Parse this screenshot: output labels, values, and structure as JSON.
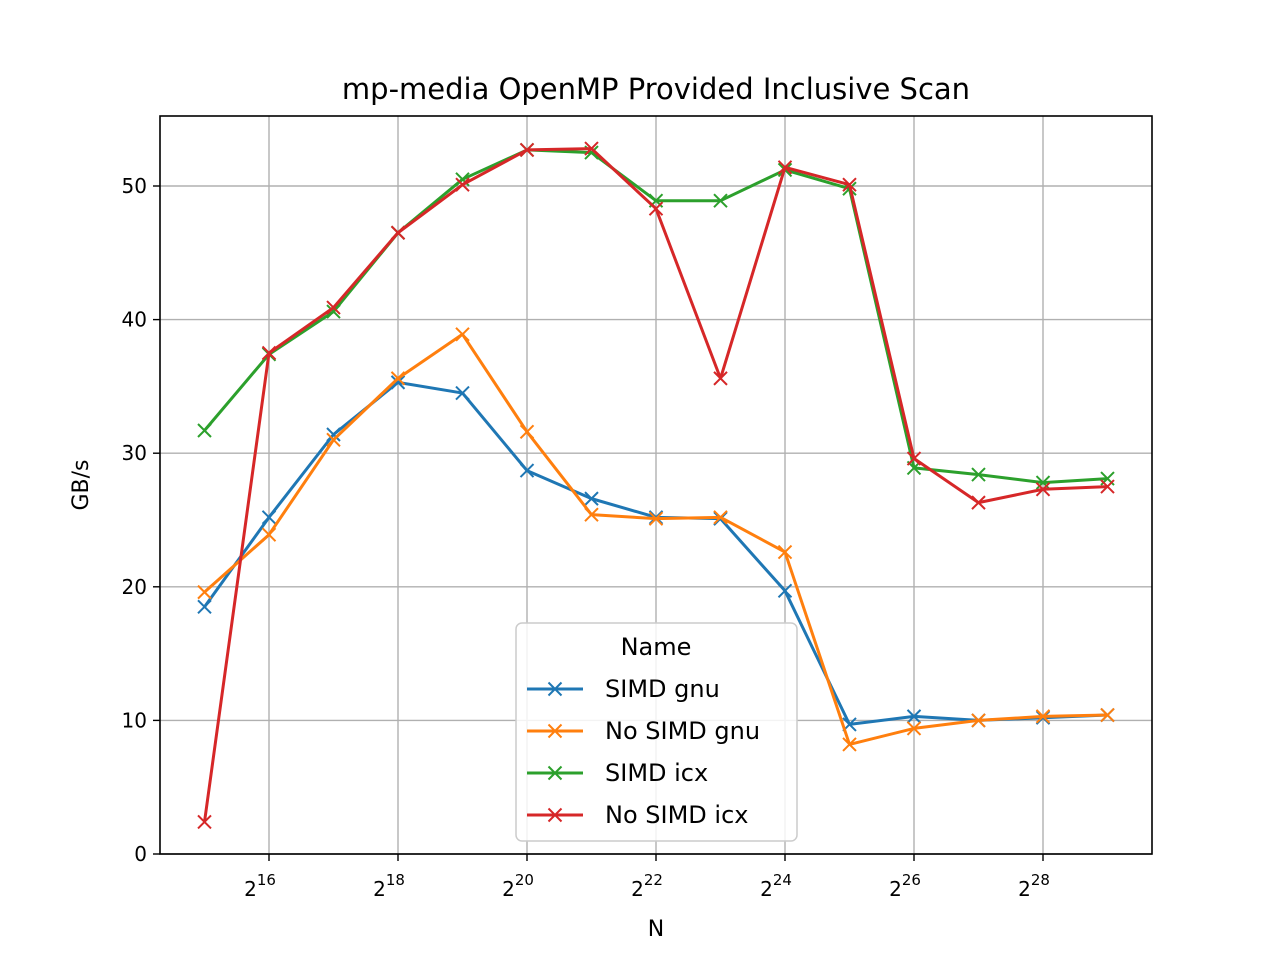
{
  "chart_data": {
    "type": "line",
    "title": "mp-media OpenMP Provided Inclusive Scan",
    "xlabel": "N",
    "ylabel": "GB/s",
    "xscale": "log2",
    "x_exponents": [
      15,
      16,
      17,
      18,
      19,
      20,
      21,
      22,
      23,
      24,
      25,
      26,
      27,
      28,
      29
    ],
    "x_tick_exponents": [
      16,
      18,
      20,
      22,
      24,
      26,
      28
    ],
    "x_tick_base": "2",
    "ylim": [
      0,
      55
    ],
    "y_ticks": [
      0,
      10,
      20,
      30,
      40,
      50
    ],
    "grid": true,
    "marker": "x",
    "legend": {
      "title": "Name",
      "placement": "lower-center"
    },
    "series": [
      {
        "name": "SIMD gnu",
        "color": "#1f77b4",
        "values": [
          18.5,
          25.2,
          31.4,
          35.3,
          34.5,
          28.7,
          26.6,
          25.2,
          25.1,
          19.7,
          9.7,
          10.3,
          10.0,
          10.2,
          10.4
        ]
      },
      {
        "name": "No SIMD gnu",
        "color": "#ff7f0e",
        "values": [
          19.6,
          23.9,
          31.0,
          35.6,
          38.9,
          31.6,
          25.4,
          25.1,
          25.2,
          22.6,
          8.2,
          9.4,
          10.0,
          10.3,
          10.4
        ]
      },
      {
        "name": "SIMD icx",
        "color": "#2ca02c",
        "values": [
          31.7,
          37.4,
          40.6,
          46.5,
          50.5,
          52.7,
          52.5,
          48.9,
          48.9,
          51.2,
          49.8,
          28.9,
          28.4,
          27.8,
          28.1
        ]
      },
      {
        "name": "No SIMD icx",
        "color": "#d62728",
        "values": [
          2.4,
          37.5,
          40.9,
          46.5,
          50.1,
          52.7,
          52.8,
          48.3,
          35.6,
          51.4,
          50.1,
          29.6,
          26.3,
          27.3,
          27.5
        ]
      }
    ]
  }
}
